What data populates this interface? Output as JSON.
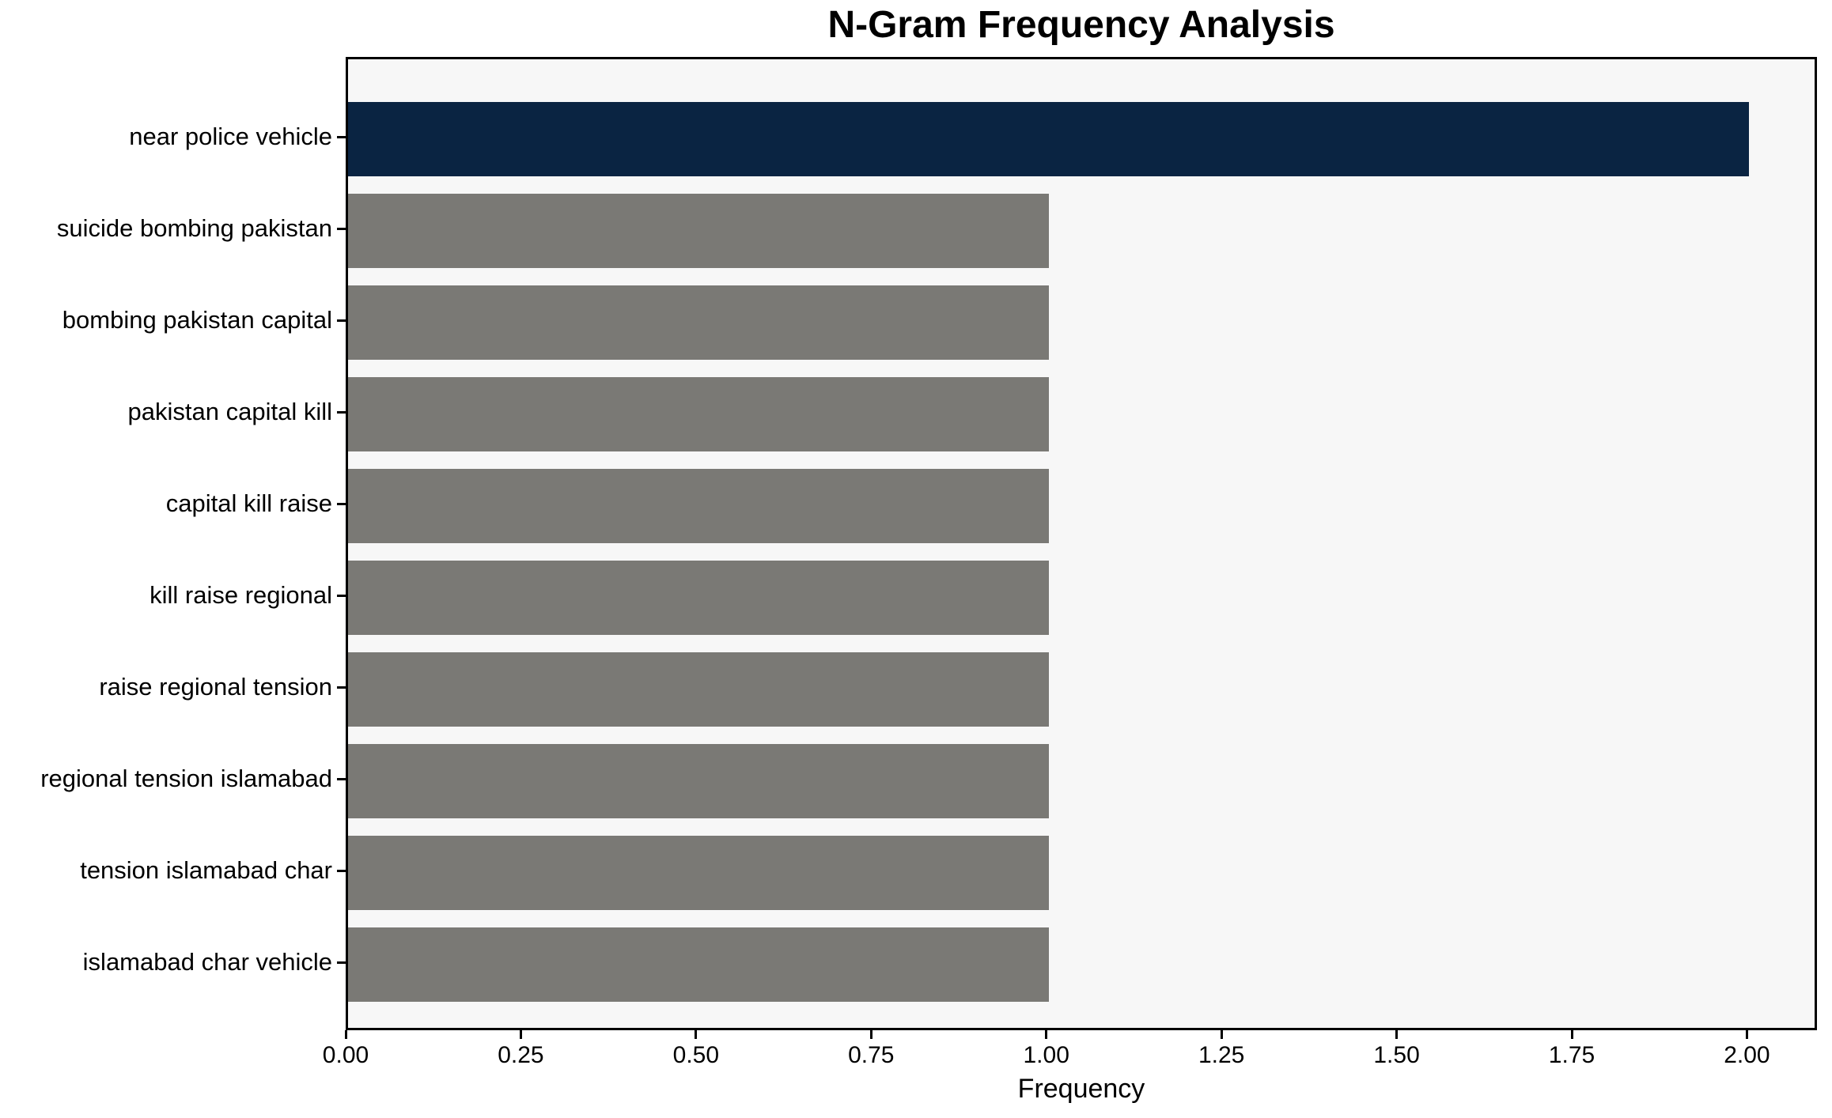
{
  "title": "N-Gram Frequency Analysis",
  "chart_data": {
    "type": "bar",
    "orientation": "horizontal",
    "title": "N-Gram Frequency Analysis",
    "xlabel": "Frequency",
    "ylabel": "",
    "categories": [
      "near police vehicle",
      "suicide bombing pakistan",
      "bombing pakistan capital",
      "pakistan capital kill",
      "capital kill raise",
      "kill raise regional",
      "raise regional tension",
      "regional tension islamabad",
      "tension islamabad char",
      "islamabad char vehicle"
    ],
    "values": [
      2,
      1,
      1,
      1,
      1,
      1,
      1,
      1,
      1,
      1
    ],
    "bar_colors": [
      "#0A2442",
      "#7A7975",
      "#7A7975",
      "#7A7975",
      "#7A7975",
      "#7A7975",
      "#7A7975",
      "#7A7975",
      "#7A7975",
      "#7A7975"
    ],
    "xlim": [
      0,
      2.1
    ],
    "xticks": [
      0.0,
      0.25,
      0.5,
      0.75,
      1.0,
      1.25,
      1.5,
      1.75,
      2.0
    ],
    "xtick_labels": [
      "0.00",
      "0.25",
      "0.50",
      "0.75",
      "1.00",
      "1.25",
      "1.50",
      "1.75",
      "2.00"
    ],
    "grid": false,
    "legend": null,
    "colors": {
      "highlight_bar": "#0A2442",
      "default_bar": "#7A7975",
      "plot_background": "#F7F7F7",
      "figure_background": "#FFFFFF",
      "axis_line": "#000000",
      "text": "#000000"
    }
  }
}
